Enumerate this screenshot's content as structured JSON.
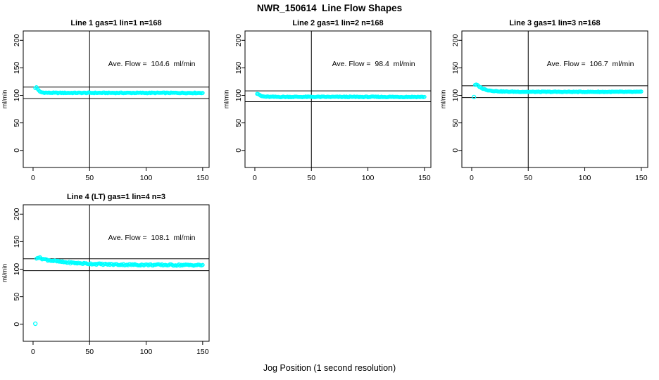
{
  "page": {
    "title": "NWR_150614  Line Flow Shapes",
    "xlabel": "Jog Position (1 second resolution)",
    "background": "#ffffff",
    "accent_color": "#00FFFF"
  },
  "chart_data": [
    {
      "type": "scatter",
      "title": "Line 1 gas=1 lin=1 n=168",
      "annotation": "Ave. Flow =  104.6  ml/min",
      "ave_flow_ml_min": 104.6,
      "ylabel": "ml/min",
      "x_ticks": [
        0,
        50,
        100,
        150
      ],
      "y_ticks": [
        0,
        50,
        100,
        150,
        200
      ],
      "xlim": [
        -8.7,
        155.7
      ],
      "ylim": [
        -31,
        217
      ],
      "hlines": [
        115.1,
        94.1
      ],
      "vline": 50,
      "grid": false,
      "marker": {
        "shape": "open-circle",
        "color": "#00FFFF",
        "radius": 2.2
      },
      "series": {
        "name": "flow",
        "x_start": 2,
        "x_end": 150,
        "x_step": 1,
        "profile": [
          [
            2,
            113
          ],
          [
            3,
            115
          ],
          [
            4,
            112
          ],
          [
            5,
            108.5
          ],
          [
            6,
            106.5
          ],
          [
            8,
            105.3
          ],
          [
            12,
            104.8
          ],
          [
            20,
            104.6
          ],
          [
            150,
            104.5
          ]
        ],
        "noise": 0.7
      },
      "outliers": [],
      "annotation_pos": [
        105,
        153
      ]
    },
    {
      "type": "scatter",
      "title": "Line 2 gas=1 lin=2 n=168",
      "annotation": "Ave. Flow =  98.4  ml/min",
      "ave_flow_ml_min": 98.4,
      "ylabel": "ml/min",
      "x_ticks": [
        0,
        50,
        100,
        150
      ],
      "y_ticks": [
        0,
        50,
        100,
        150,
        200
      ],
      "xlim": [
        -8.7,
        155.7
      ],
      "ylim": [
        -31,
        217
      ],
      "hlines": [
        108.2,
        88.6
      ],
      "vline": 50,
      "grid": false,
      "marker": {
        "shape": "open-circle",
        "color": "#00FFFF",
        "radius": 2.2
      },
      "series": {
        "name": "flow",
        "x_start": 2,
        "x_end": 150,
        "x_step": 1,
        "profile": [
          [
            2,
            103
          ],
          [
            3,
            102.5
          ],
          [
            4,
            100.5
          ],
          [
            6,
            98.5
          ],
          [
            9,
            97.6
          ],
          [
            15,
            97.3
          ],
          [
            150,
            97.2
          ]
        ],
        "noise": 0.7
      },
      "outliers": [],
      "annotation_pos": [
        105,
        153
      ]
    },
    {
      "type": "scatter",
      "title": "Line 3 gas=1 lin=3 n=168",
      "annotation": "Ave. Flow =  106.7  ml/min",
      "ave_flow_ml_min": 106.7,
      "ylabel": "ml/min",
      "x_ticks": [
        0,
        50,
        100,
        150
      ],
      "y_ticks": [
        0,
        50,
        100,
        150,
        200
      ],
      "xlim": [
        -8.7,
        155.7
      ],
      "ylim": [
        -31,
        217
      ],
      "hlines": [
        117.4,
        96.0
      ],
      "vline": 50,
      "grid": false,
      "marker": {
        "shape": "open-circle",
        "color": "#00FFFF",
        "radius": 2.2
      },
      "series": {
        "name": "flow",
        "x_start": 3,
        "x_end": 150,
        "x_step": 1,
        "profile": [
          [
            3,
            118.5
          ],
          [
            4,
            119.5
          ],
          [
            5,
            118.5
          ],
          [
            7,
            115.5
          ],
          [
            10,
            112
          ],
          [
            14,
            109.5
          ],
          [
            20,
            107.8
          ],
          [
            30,
            106.8
          ],
          [
            50,
            106.4
          ],
          [
            150,
            106.3
          ]
        ],
        "noise": 0.6
      },
      "outliers": [
        [
          2,
          97
        ]
      ],
      "annotation_pos": [
        105,
        153
      ]
    },
    {
      "type": "scatter",
      "title": "Line 4 (LT) gas=1 lin=4 n=3",
      "annotation": "Ave. Flow =  108.1  ml/min",
      "ave_flow_ml_min": 108.1,
      "ylabel": "ml/min",
      "x_ticks": [
        0,
        50,
        100,
        150
      ],
      "y_ticks": [
        0,
        50,
        100,
        150,
        200
      ],
      "xlim": [
        -8.7,
        155.7
      ],
      "ylim": [
        -31,
        217
      ],
      "hlines": [
        118.9,
        97.3
      ],
      "vline": 50,
      "grid": false,
      "marker": {
        "shape": "open-circle",
        "color": "#00FFFF",
        "radius": 2.2
      },
      "series": {
        "name": "flow",
        "x_start": 3,
        "x_end": 150,
        "x_step": 1,
        "profile": [
          [
            3,
            120.5
          ],
          [
            4,
            121.5
          ],
          [
            6,
            120.5
          ],
          [
            10,
            118
          ],
          [
            15,
            116
          ],
          [
            20,
            114.5
          ],
          [
            27,
            112.8
          ],
          [
            35,
            111.5
          ],
          [
            45,
            110.3
          ],
          [
            55,
            109.5
          ],
          [
            70,
            108.6
          ],
          [
            90,
            108
          ],
          [
            120,
            107.6
          ],
          [
            150,
            107.4
          ]
        ],
        "noise": 1.4
      },
      "outliers": [
        [
          2,
          1
        ]
      ],
      "annotation_pos": [
        105,
        153
      ]
    }
  ]
}
